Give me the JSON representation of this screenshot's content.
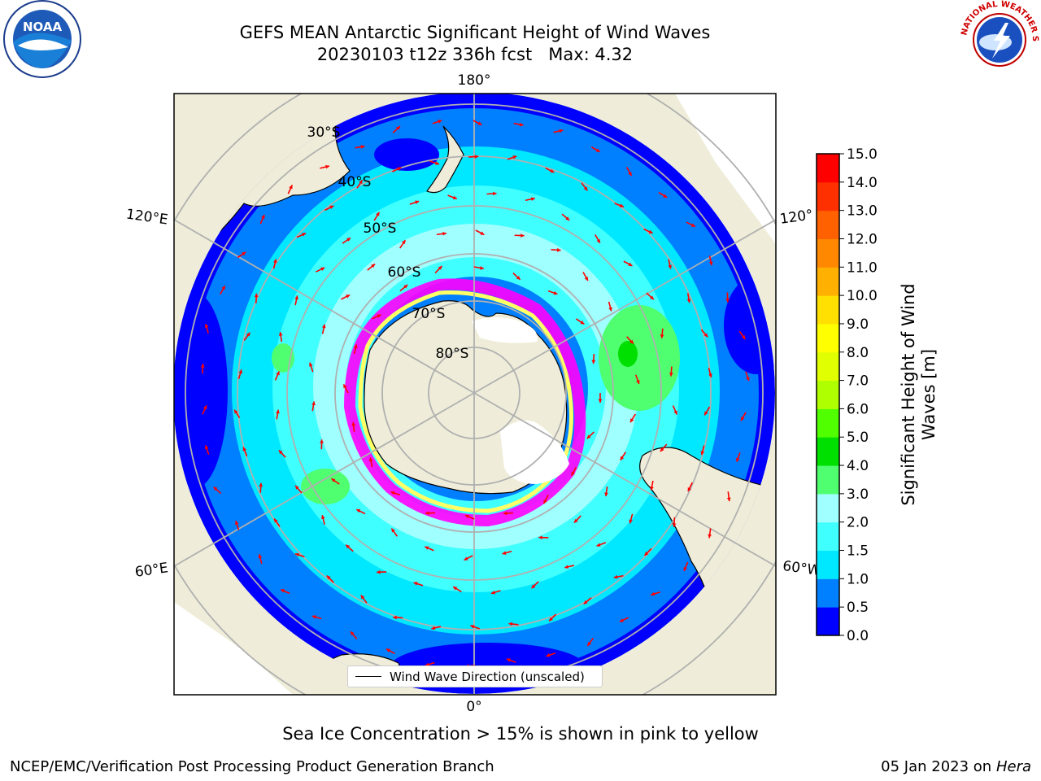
{
  "header": {
    "title_line1": "GEFS MEAN Antarctic Significant Height of Wind Waves",
    "title_line2": "20230103 t12z 336h fcst   Max: 4.32"
  },
  "logos": {
    "left": "noaa-logo",
    "left_text": "NOAA",
    "right": "national-weather-service-logo",
    "right_text": "NATIONAL WEATHER SERVICE"
  },
  "map": {
    "projection": "south-polar-stereographic",
    "longitude_labels": [
      "180°",
      "120°E",
      "120°",
      "60°E",
      "60°W",
      "0°"
    ],
    "latitude_labels": [
      "30°S",
      "40°S",
      "50°S",
      "60°S",
      "70°S",
      "80°S"
    ],
    "legend": "Wind Wave Direction (unscaled)",
    "arrow_color": "#ff0000",
    "land_color": "#efedd9",
    "sea_ice_colors": [
      "#ff00ff",
      "#ffff66",
      "#ffffff"
    ]
  },
  "colorbar": {
    "label_line1": "Significant Height of Wind",
    "label_line2": "Waves [m]",
    "ticks": [
      "0.0",
      "0.5",
      "1.0",
      "1.5",
      "2.0",
      "3.0",
      "4.0",
      "5.0",
      "6.0",
      "7.0",
      "8.0",
      "9.0",
      "10.0",
      "11.0",
      "12.0",
      "13.0",
      "14.0",
      "15.0"
    ],
    "colors": [
      "#0000ff",
      "#0080ff",
      "#00e8ff",
      "#40ffff",
      "#a0ffff",
      "#50ff70",
      "#00e000",
      "#50ff00",
      "#b0ff00",
      "#e0ff00",
      "#ffff00",
      "#ffe000",
      "#ffb000",
      "#ff8800",
      "#ff6000",
      "#ff3000",
      "#ff0000"
    ]
  },
  "caption": "Sea Ice Concentration > 15% is shown in pink to yellow",
  "footer": {
    "left": "NCEP/EMC/Verification Post Processing Product Generation Branch",
    "right_date": "05 Jan 2023 on",
    "right_host": "Hera"
  }
}
